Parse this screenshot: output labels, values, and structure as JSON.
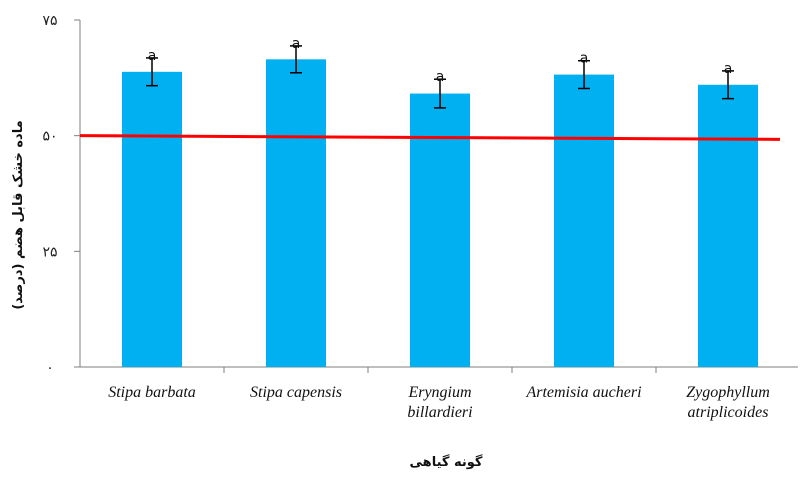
{
  "chart_data": {
    "type": "bar",
    "categories": [
      [
        "Stipa barbata"
      ],
      [
        "Stipa capensis"
      ],
      [
        "Eryngium",
        "billardieri"
      ],
      [
        "Artemisia aucheri"
      ],
      [
        "Zygophyllum",
        "atriplicoides"
      ]
    ],
    "values": [
      63.8,
      66.5,
      59.1,
      63.2,
      61.0
    ],
    "errors": [
      3.0,
      2.9,
      3.1,
      3.0,
      3.0
    ],
    "significance": [
      "a",
      "a",
      "a",
      "a",
      "a"
    ],
    "xlabel": "گونه گیاهی",
    "ylabel": "ماده خشک قابل هضم (درصد)",
    "ylim": [
      0,
      75
    ],
    "yticks": [
      0,
      25,
      50,
      75
    ],
    "ytick_labels": [
      "۰",
      "۲۵",
      "۵۰",
      "۷۵"
    ],
    "reference_line": {
      "start": 50.0,
      "end": 49.2
    },
    "colors": {
      "bar": "#00b0f0",
      "reference_line": "#ff0000",
      "axis": "#7f7f7f"
    },
    "grid": false
  }
}
